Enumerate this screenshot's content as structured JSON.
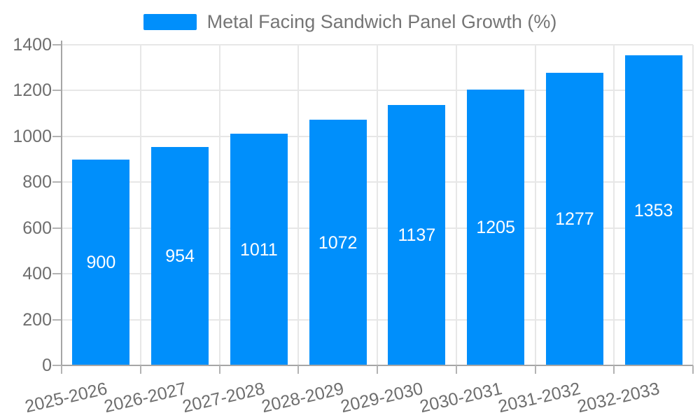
{
  "chart_data": {
    "type": "bar",
    "title": "Metal Facing Sandwich Panel Growth (%)",
    "categories": [
      "2025-2026",
      "2026-2027",
      "2027-2028",
      "2028-2029",
      "2029-2030",
      "2030-2031",
      "2031-2032",
      "2032-2033"
    ],
    "values": [
      900,
      954,
      1011,
      1072,
      1137,
      1205,
      1277,
      1353
    ],
    "xlabel": "",
    "ylabel": "",
    "ylim": [
      0,
      1400
    ],
    "yticks": [
      0,
      200,
      400,
      600,
      800,
      1000,
      1200,
      1400
    ],
    "grid": true,
    "legend_position": "top",
    "colors": {
      "bar": "#008FFB",
      "value_label": "#ffffff",
      "axis_text": "#6e6e6e",
      "legend_text": "#757575",
      "gridline": "#e7e7e7",
      "axis_line": "#a6a6a6"
    }
  }
}
